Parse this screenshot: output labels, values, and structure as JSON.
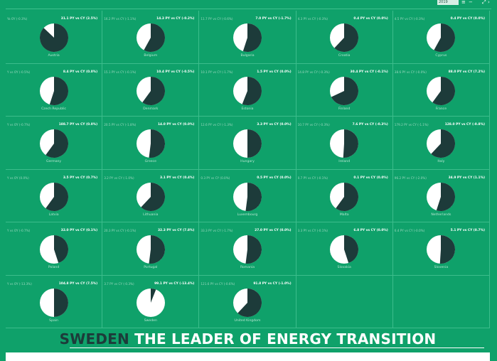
{
  "header": {
    "year": "2019"
  },
  "banner": {
    "highlight": "SWEDEN",
    "rest": "THE LEADER OF ENERGY TRANSITION"
  },
  "colors": {
    "background": "#0fa16a",
    "renewable": "#1d3b3a",
    "other": "#ffffff",
    "grid": "#3cbd8c"
  },
  "chart_data": {
    "type": "pie",
    "grid_columns": 5,
    "panels": [
      {
        "country": "Austria",
        "left_label": "Ya OY (-0.3%)",
        "right_label": "31.1 PY vs CY (2.5%)",
        "share": 31.1
      },
      {
        "country": "Belgium",
        "left_label": "16.2 PY vs CY (-1.1%)",
        "right_label": "14.3 PY vs CY (-0.2%)",
        "share": 14.3
      },
      {
        "country": "Bulgaria",
        "left_label": "11.7 PY vs CY (-0.6%)",
        "right_label": "7.0 PY vs CY (-1.7%)",
        "share": 7.0
      },
      {
        "country": "Croatia",
        "left_label": "4.3 PY vs CY (-0.3%)",
        "right_label": "0.4 PY vs CY (0.0%)",
        "share": 0.4
      },
      {
        "country": "Cyprus",
        "left_label": "4.5 PY vs CY (-0.3%)",
        "right_label": "0.4 PY vs CY (0.0%)",
        "share": 0.4
      },
      {
        "country": "Czech Republic",
        "left_label": "Y vs OY (-0.5%)",
        "right_label": "8.4 PY vs CY (0.0%)",
        "share": 8.4
      },
      {
        "country": "Denmark",
        "left_label": "15.1 PY vs CY (-0.1%)",
        "right_label": "10.4 PY vs CY (-0.5%)",
        "share": 10.4
      },
      {
        "country": "Estonia",
        "left_label": "10.1 PY vs CY (-1.7%)",
        "right_label": "1.5 PY vs CY (0.0%)",
        "share": 1.5
      },
      {
        "country": "Finland",
        "left_label": "14.8 PY vs CY (-0.3%)",
        "right_label": "30.4 PY vs CY (-0.1%)",
        "share": 30.4
      },
      {
        "country": "France",
        "left_label": "38.6 PY vs CY (-0.0%)",
        "right_label": "88.0 PY vs CY (7.2%)",
        "share": 88.0
      },
      {
        "country": "Germany",
        "left_label": "Y vs OY (-0.7%)",
        "right_label": "188.7 PY vs CY (0.0%)",
        "share": 188.7
      },
      {
        "country": "Greece",
        "left_label": "20.5 PY vs CY (-1.8%)",
        "right_label": "14.0 PY vs CY (0.0%)",
        "share": 14.0
      },
      {
        "country": "Hungary",
        "left_label": "12.6 PY vs CY (-1.3%)",
        "right_label": "3.3 PY vs CY (0.0%)",
        "share": 3.3
      },
      {
        "country": "Ireland",
        "left_label": "10.7 PY vs CY (-0.3%)",
        "right_label": "7.6 PY vs CY (-0.3%)",
        "share": 7.6
      },
      {
        "country": "Italy",
        "left_label": "179.2 PY vs CY (-1.1%)",
        "right_label": "128.0 PY vs CY (-0.8%)",
        "share": 128.0
      },
      {
        "country": "Latvia",
        "left_label": "Y vs OY (0.0%)",
        "right_label": "3.5 PY vs CY (0.7%)",
        "share": 3.5
      },
      {
        "country": "Lithuania",
        "left_label": "3.2 PY vs CY (-1.0%)",
        "right_label": "3.1 PY vs CY (0.4%)",
        "share": 3.1
      },
      {
        "country": "Luxembourg",
        "left_label": "0.3 PY vs CY (0.0%)",
        "right_label": "0.5 PY vs CY (0.0%)",
        "share": 0.5
      },
      {
        "country": "Malta",
        "left_label": "0.7 PY vs CY (-0.1%)",
        "right_label": "0.1 PY vs CY (0.0%)",
        "share": 0.1
      },
      {
        "country": "Netherlands",
        "left_label": "96.2 PY vs CY (-2.0%)",
        "right_label": "34.9 PY vs CY (1.1%)",
        "share": 34.9
      },
      {
        "country": "Poland",
        "left_label": "Y vs OY (-0.7%)",
        "right_label": "32.0 PY vs CY (0.1%)",
        "share": 32.0
      },
      {
        "country": "Portugal",
        "left_label": "20.3 PY vs CY (-0.1%)",
        "right_label": "32.3 PY vs CY (7.8%)",
        "share": 32.3
      },
      {
        "country": "Romania",
        "left_label": "33.3 PY vs CY (-1.7%)",
        "right_label": "27.0 PY vs CY (0.0%)",
        "share": 27.0
      },
      {
        "country": "Slovakia",
        "left_label": "3.3 PY vs CY (-0.1%)",
        "right_label": "6.8 PY vs CY (0.0%)",
        "share": 6.8
      },
      {
        "country": "Slovenia",
        "left_label": "6.4 PY vs CY (-0.0%)",
        "right_label": "5.1 PY vs CY (0.7%)",
        "share": 5.1
      },
      {
        "country": "Spain",
        "left_label": "Y vs OY (-13.3%)",
        "right_label": "104.8 PY vs CY (7.5%)",
        "share": 104.8
      },
      {
        "country": "Sweden",
        "left_label": "3.7 PY vs CY (-0.3%)",
        "right_label": "99.1 PY vs CY (-13.4%)",
        "share": 99.1
      },
      {
        "country": "United Kingdom",
        "left_label": "121.6 PY vs CY (-0.6%)",
        "right_label": "91.8 PY vs CY (-1.0%)",
        "share": 91.8
      }
    ],
    "fractions": [
      0.87,
      0.58,
      0.55,
      0.62,
      0.58,
      0.55,
      0.6,
      0.56,
      0.68,
      0.6,
      0.6,
      0.52,
      0.5,
      0.51,
      0.62,
      0.6,
      0.62,
      0.52,
      0.6,
      0.55,
      0.45,
      0.52,
      0.52,
      0.45,
      0.51,
      0.5,
      0.06,
      0.62
    ]
  }
}
